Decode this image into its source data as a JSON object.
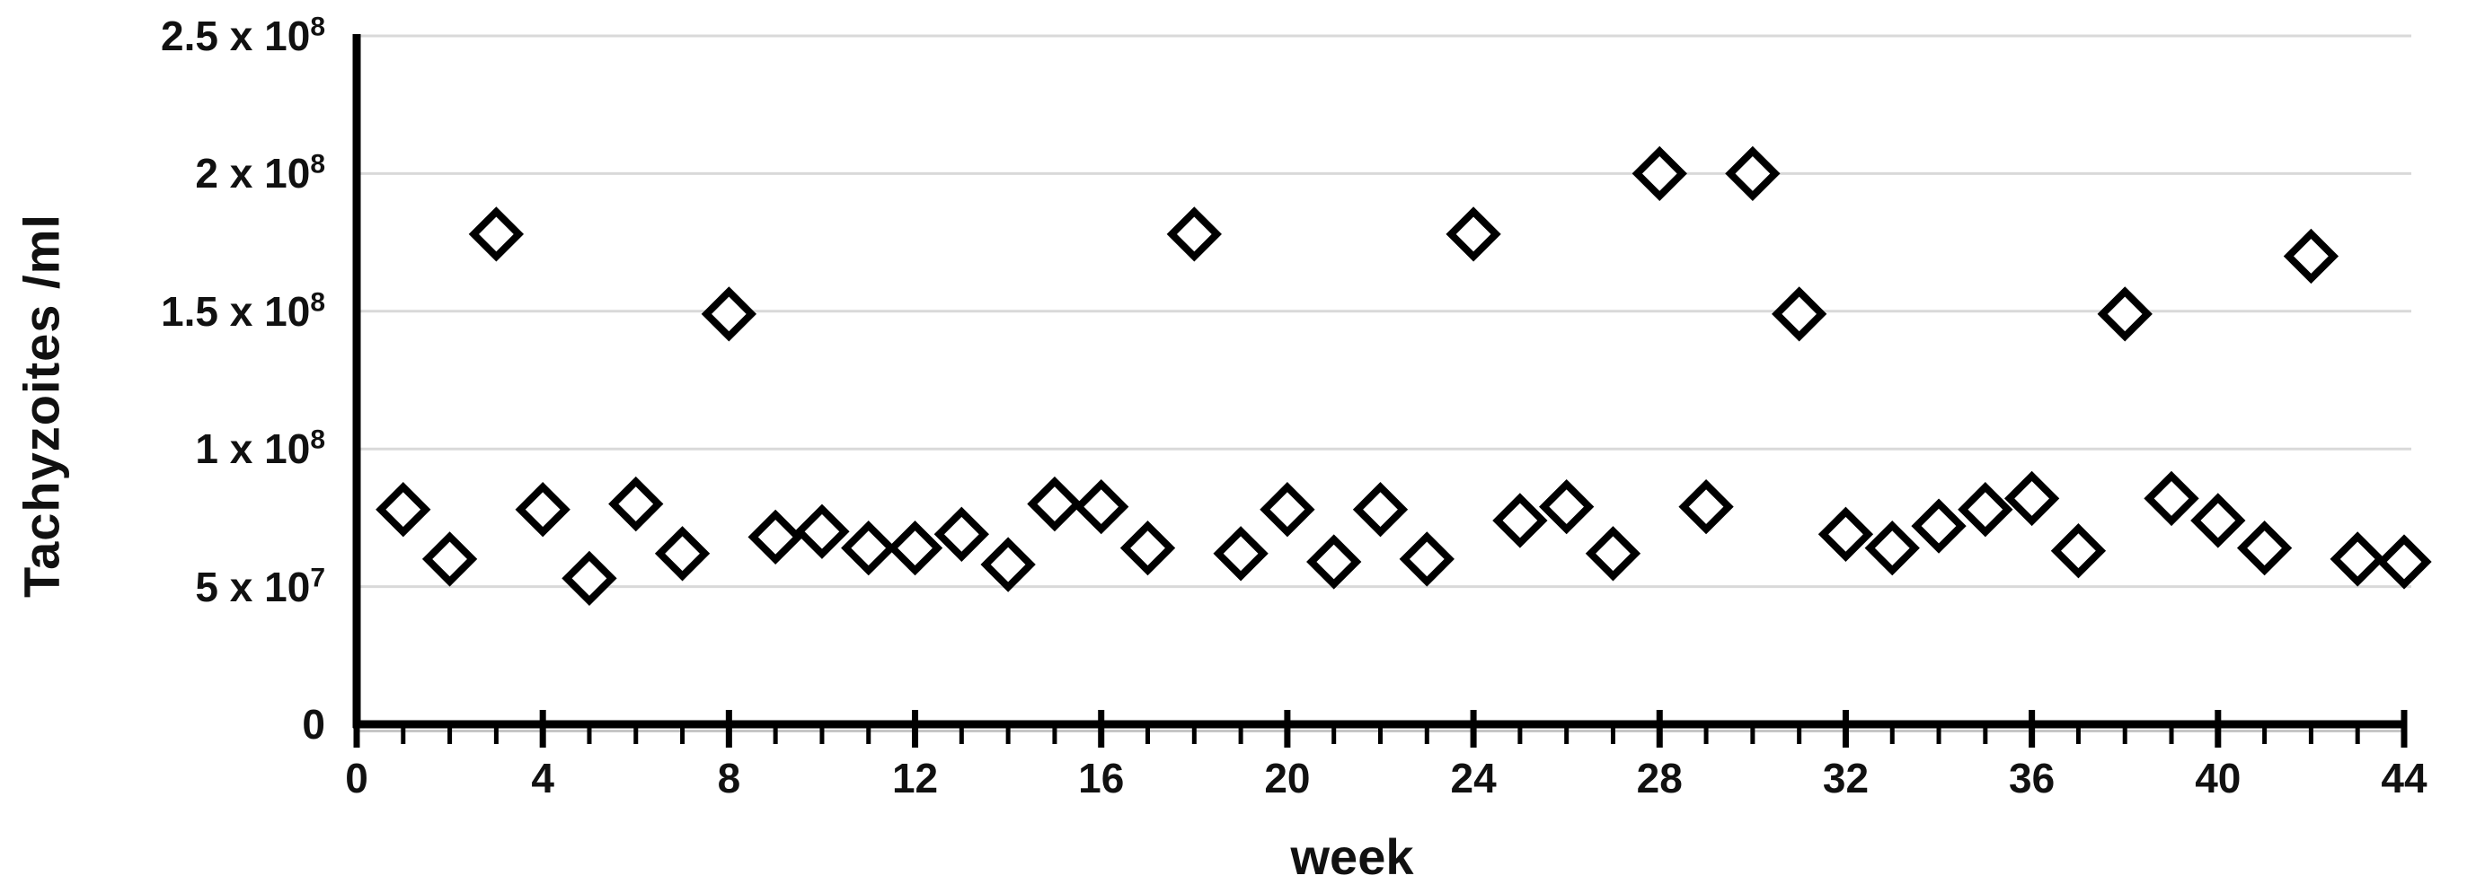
{
  "figure": {
    "background": "#ffffff",
    "text_color": "#111111",
    "axis_color": "#000000",
    "axis_shadow_color": "#c6c6c6",
    "gridline_color": "#d9d9d9",
    "marker_fill": "#ffffff",
    "marker_stroke": "#000000"
  },
  "chart_data": {
    "type": "scatter",
    "title": "",
    "xlabel": "week",
    "ylabel": "Tachyzoites /ml",
    "xlim": [
      0,
      44
    ],
    "ylim": [
      0,
      250000000
    ],
    "grid": "horizontal",
    "legend_position": "none",
    "marker": "open-diamond",
    "x_major_ticks": [
      0,
      4,
      8,
      12,
      16,
      20,
      24,
      28,
      32,
      36,
      40,
      44
    ],
    "x_minor_tick_step": 1,
    "y_ticks": [
      {
        "value": 250000000,
        "base": "2.5 x 10",
        "exp": "8"
      },
      {
        "value": 200000000,
        "base": "2 x 10",
        "exp": "8"
      },
      {
        "value": 150000000,
        "base": "1.5 x 10",
        "exp": "8"
      },
      {
        "value": 100000000,
        "base": "1 x 10",
        "exp": "8"
      },
      {
        "value": 50000000,
        "base": "5 x 10",
        "exp": "7"
      },
      {
        "value": 0,
        "base": "0",
        "exp": ""
      }
    ],
    "series": [
      {
        "name": "Tachyzoites /ml",
        "x": [
          1,
          2,
          3,
          4,
          5,
          6,
          7,
          8,
          9,
          10,
          11,
          12,
          13,
          14,
          15,
          16,
          17,
          18,
          19,
          20,
          21,
          22,
          23,
          24,
          25,
          26,
          27,
          28,
          29,
          30,
          31,
          32,
          33,
          34,
          35,
          36,
          37,
          38,
          39,
          40,
          41,
          42,
          43,
          44
        ],
        "y": [
          78000000,
          60000000,
          178000000,
          78000000,
          53000000,
          80000000,
          62000000,
          149000000,
          68000000,
          70000000,
          64000000,
          64000000,
          69000000,
          58000000,
          80000000,
          79000000,
          64000000,
          178000000,
          62000000,
          78000000,
          59000000,
          78000000,
          60000000,
          178000000,
          74000000,
          79000000,
          62000000,
          200000000,
          79000000,
          200000000,
          149000000,
          69000000,
          64000000,
          72000000,
          78000000,
          82000000,
          63000000,
          149000000,
          82000000,
          74000000,
          64000000,
          170000000,
          60000000,
          59000000
        ]
      }
    ]
  }
}
